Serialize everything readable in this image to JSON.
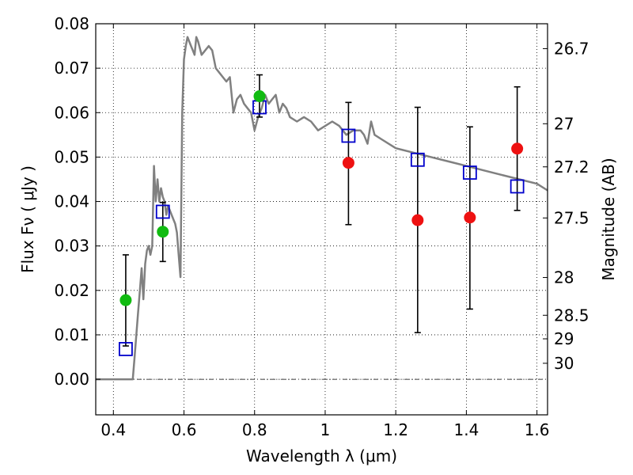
{
  "chart_data": {
    "type": "scatter",
    "xlabel": "Wavelength  λ (μm)",
    "ylabel": "Flux  Fν  ( μJy )",
    "right_ylabel": "Magnitude (AB)",
    "xlim": [
      0.35,
      1.63
    ],
    "ylim": [
      -0.008,
      0.08
    ],
    "xticks": [
      0.4,
      0.6,
      0.8,
      1.0,
      1.2,
      1.4,
      1.6
    ],
    "xtick_labels": [
      "0.4",
      "0.6",
      "0.8",
      "1",
      "1.2",
      "1.4",
      "1.6"
    ],
    "yticks": [
      0.0,
      0.01,
      0.02,
      0.03,
      0.04,
      0.05,
      0.06,
      0.07,
      0.08
    ],
    "ytick_labels": [
      "0.00",
      "0.01",
      "0.02",
      "0.03",
      "0.04",
      "0.05",
      "0.06",
      "0.07",
      "0.08"
    ],
    "mag_ticks": [
      {
        "label": "26.7",
        "flux": 0.0744
      },
      {
        "label": "27",
        "flux": 0.0575
      },
      {
        "label": "27.2",
        "flux": 0.0478
      },
      {
        "label": "27.5",
        "flux": 0.0363
      },
      {
        "label": "28",
        "flux": 0.0229
      },
      {
        "label": "28.5",
        "flux": 0.0144
      },
      {
        "label": "29",
        "flux": 0.0091
      },
      {
        "label": "30",
        "flux": 0.0036
      }
    ],
    "grid": true,
    "colors": {
      "model": "#808080",
      "detected": "#11bb11",
      "upper": "#ee1111",
      "model_box": "#0000cc",
      "errorbar": "#000000"
    },
    "model_spectrum": {
      "x": [
        0.35,
        0.43,
        0.44,
        0.455,
        0.46,
        0.465,
        0.47,
        0.475,
        0.48,
        0.485,
        0.49,
        0.495,
        0.5,
        0.505,
        0.51,
        0.515,
        0.52,
        0.525,
        0.53,
        0.535,
        0.54,
        0.545,
        0.55,
        0.555,
        0.56,
        0.565,
        0.57,
        0.575,
        0.58,
        0.585,
        0.59,
        0.595,
        0.6,
        0.605,
        0.61,
        0.615,
        0.62,
        0.625,
        0.63,
        0.635,
        0.64,
        0.65,
        0.66,
        0.67,
        0.68,
        0.69,
        0.7,
        0.71,
        0.72,
        0.73,
        0.74,
        0.75,
        0.76,
        0.77,
        0.78,
        0.79,
        0.8,
        0.81,
        0.82,
        0.83,
        0.84,
        0.85,
        0.86,
        0.87,
        0.88,
        0.89,
        0.9,
        0.92,
        0.94,
        0.96,
        0.98,
        1.0,
        1.02,
        1.04,
        1.06,
        1.08,
        1.1,
        1.11,
        1.12,
        1.13,
        1.14,
        1.16,
        1.2,
        1.25,
        1.3,
        1.35,
        1.4,
        1.45,
        1.5,
        1.55,
        1.6,
        1.63
      ],
      "y": [
        0.0,
        0.0,
        0.0,
        0.0,
        0.005,
        0.01,
        0.015,
        0.02,
        0.025,
        0.018,
        0.026,
        0.029,
        0.03,
        0.028,
        0.03,
        0.048,
        0.04,
        0.045,
        0.04,
        0.043,
        0.041,
        0.04,
        0.037,
        0.039,
        0.038,
        0.037,
        0.036,
        0.035,
        0.033,
        0.028,
        0.023,
        0.06,
        0.072,
        0.075,
        0.077,
        0.076,
        0.075,
        0.074,
        0.073,
        0.077,
        0.076,
        0.073,
        0.074,
        0.075,
        0.074,
        0.07,
        0.069,
        0.068,
        0.067,
        0.068,
        0.06,
        0.063,
        0.064,
        0.062,
        0.061,
        0.06,
        0.056,
        0.059,
        0.061,
        0.064,
        0.062,
        0.063,
        0.064,
        0.06,
        0.062,
        0.061,
        0.059,
        0.058,
        0.059,
        0.058,
        0.056,
        0.057,
        0.058,
        0.057,
        0.055,
        0.056,
        0.056,
        0.055,
        0.053,
        0.058,
        0.055,
        0.054,
        0.052,
        0.051,
        0.05,
        0.049,
        0.048,
        0.047,
        0.046,
        0.045,
        0.044,
        0.0425
      ]
    },
    "photometry": [
      {
        "x": 0.435,
        "y": 0.0178,
        "err_low": 0.0075,
        "err_high": 0.028,
        "kind": "detected",
        "model": 0.0068
      },
      {
        "x": 0.54,
        "y": 0.0332,
        "err_low": 0.0265,
        "err_high": 0.0398,
        "kind": "detected",
        "model": 0.0377
      },
      {
        "x": 0.814,
        "y": 0.0637,
        "err_low": 0.059,
        "err_high": 0.0685,
        "kind": "detected",
        "model": 0.0612
      },
      {
        "x": 1.066,
        "y": 0.0487,
        "err_low": 0.0348,
        "err_high": 0.0623,
        "kind": "upper",
        "model": 0.0548
      },
      {
        "x": 1.262,
        "y": 0.0358,
        "err_low": 0.0105,
        "err_high": 0.0612,
        "kind": "upper",
        "model": 0.0494
      },
      {
        "x": 1.41,
        "y": 0.0364,
        "err_low": 0.0158,
        "err_high": 0.0568,
        "kind": "upper",
        "model": 0.0465
      },
      {
        "x": 1.544,
        "y": 0.0519,
        "err_low": 0.038,
        "err_high": 0.0658,
        "kind": "upper",
        "model": 0.0434
      }
    ]
  }
}
